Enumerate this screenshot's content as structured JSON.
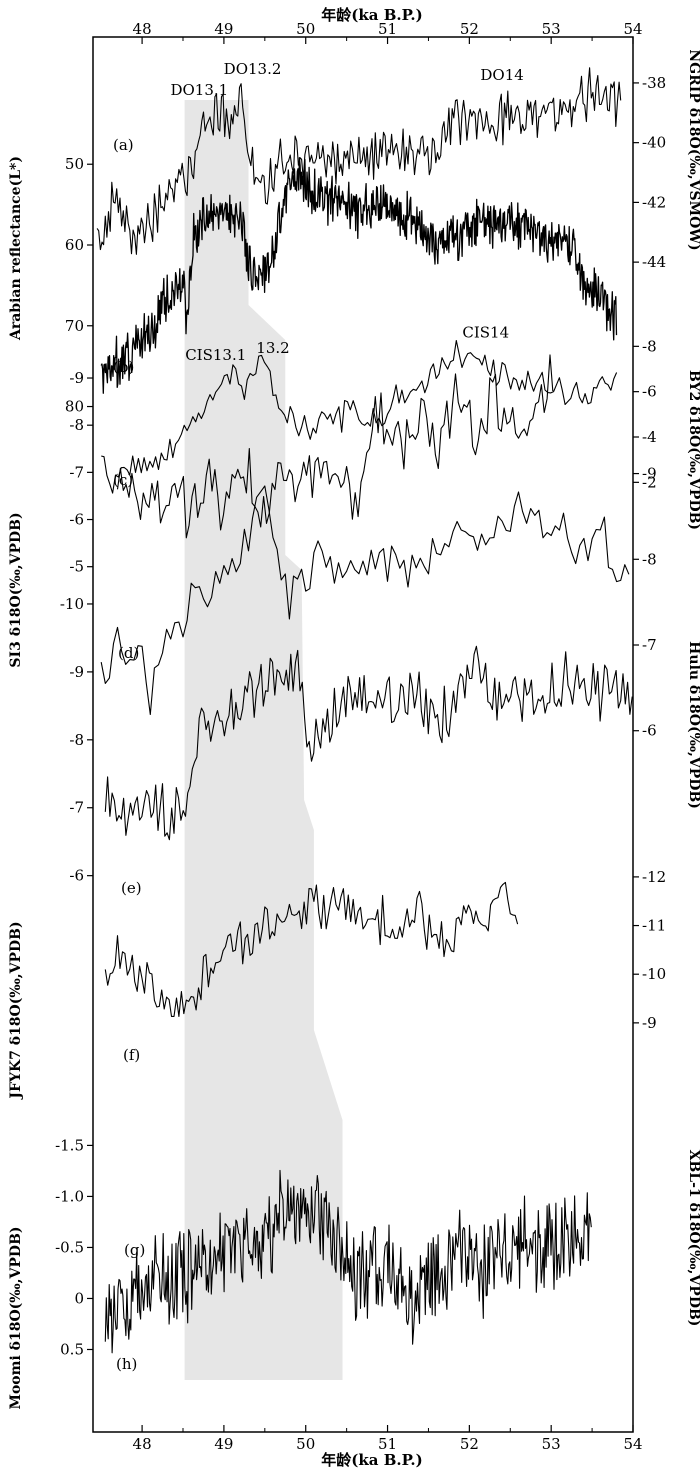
{
  "chart_data": {
    "type": "line",
    "title": "",
    "xlabel_top": "年龄(ka B.P.)",
    "xlabel_bottom": "年龄(ka B.P.)",
    "x_ticks": [
      "48",
      "49",
      "50",
      "51",
      "52",
      "53",
      "54"
    ],
    "xlim": [
      47.4,
      54.0
    ],
    "line_color": "#000000",
    "band_color": "#e6e6e6",
    "event_labels": [
      {
        "text": "DO13.1",
        "x": 48.7,
        "y": -38.4,
        "series": "a"
      },
      {
        "text": "DO13.2",
        "x": 49.35,
        "y": -37.7,
        "series": "a"
      },
      {
        "text": "DO14",
        "x": 52.4,
        "y": -37.9,
        "series": "a"
      },
      {
        "text": "CIS13.1",
        "x": 48.9,
        "y": -7.4,
        "series": "c"
      },
      {
        "text": "13.2",
        "x": 49.6,
        "y": -7.7,
        "series": "c"
      },
      {
        "text": "CIS14",
        "x": 52.2,
        "y": -8.4,
        "series": "c"
      }
    ],
    "series": [
      {
        "id": "a",
        "panel_label": "(a)",
        "name": "NGRIP δ18O",
        "axis_side": "right",
        "axis_title": "NGRIP δ18O(‰,VSMOW)",
        "ylim": [
          -45,
          -37.4
        ],
        "y_invert": false,
        "ticks": [
          -38,
          -40,
          -42,
          -44
        ],
        "tick_labels": [
          "-38",
          "-40",
          "-42",
          "-44"
        ],
        "x_start": 47.45,
        "x_end": 53.85,
        "anchors": [
          [
            47.45,
            -43.5
          ],
          [
            47.7,
            -41.8
          ],
          [
            47.9,
            -43.2
          ],
          [
            48.1,
            -42.6
          ],
          [
            48.35,
            -41.6
          ],
          [
            48.45,
            -41.3
          ],
          [
            48.6,
            -40.8
          ],
          [
            48.8,
            -39.5
          ],
          [
            48.95,
            -38.8
          ],
          [
            49.05,
            -39.6
          ],
          [
            49.2,
            -38.3
          ],
          [
            49.3,
            -40.2
          ],
          [
            49.42,
            -41.8
          ],
          [
            49.55,
            -41.4
          ],
          [
            49.75,
            -40.3
          ],
          [
            50.2,
            -40.5
          ],
          [
            50.8,
            -40.5
          ],
          [
            51.3,
            -40.3
          ],
          [
            51.6,
            -40.6
          ],
          [
            51.75,
            -39.4
          ],
          [
            52.3,
            -39.3
          ],
          [
            53.0,
            -38.9
          ],
          [
            53.5,
            -38.5
          ],
          [
            53.85,
            -38.8
          ]
        ],
        "noise": 0.75,
        "step": 0.02
      },
      {
        "id": "b",
        "panel_label": "(b)",
        "name": "Arabian reflectance",
        "axis_side": "left",
        "axis_title": "Arabian reflectance(L*)",
        "ylim": [
          86,
          47
        ],
        "y_invert": true,
        "ticks": [
          50,
          60,
          70,
          80
        ],
        "tick_labels": [
          "50",
          "60",
          "70",
          "80"
        ],
        "x_start": 47.5,
        "x_end": 53.8,
        "anchors": [
          [
            47.5,
            75
          ],
          [
            47.8,
            74
          ],
          [
            48.1,
            71
          ],
          [
            48.3,
            66
          ],
          [
            48.5,
            64
          ],
          [
            48.55,
            70
          ],
          [
            48.62,
            59
          ],
          [
            48.8,
            56
          ],
          [
            49.05,
            56
          ],
          [
            49.2,
            57
          ],
          [
            49.3,
            62
          ],
          [
            49.45,
            64
          ],
          [
            49.6,
            61
          ],
          [
            49.72,
            54
          ],
          [
            49.85,
            52
          ],
          [
            50.2,
            54
          ],
          [
            50.6,
            56
          ],
          [
            50.9,
            55
          ],
          [
            51.3,
            57
          ],
          [
            51.6,
            60
          ],
          [
            52.0,
            58
          ],
          [
            52.4,
            57
          ],
          [
            52.8,
            58
          ],
          [
            53.1,
            60
          ],
          [
            53.3,
            61
          ],
          [
            53.4,
            65
          ],
          [
            53.6,
            66
          ],
          [
            53.8,
            69
          ]
        ],
        "noise": 2.6,
        "step": 0.0085
      },
      {
        "id": "c",
        "panel_label": "(c)",
        "name": "BY2 δ18O",
        "axis_side": "right",
        "axis_title": "BY2 δ18O(‰,VPDB)",
        "ylim": [
          -1.0,
          -8.5
        ],
        "y_invert": true,
        "ticks": [
          -8,
          -6,
          -4,
          -2
        ],
        "tick_labels": [
          "-8",
          "-6",
          "-4",
          "-2"
        ],
        "x_start": 47.5,
        "x_end": 53.8,
        "anchors": [
          [
            47.5,
            -2.6
          ],
          [
            47.65,
            -1.9
          ],
          [
            47.8,
            -2.6
          ],
          [
            47.95,
            -3.0
          ],
          [
            48.1,
            -2.7
          ],
          [
            48.3,
            -3.3
          ],
          [
            48.5,
            -4.3
          ],
          [
            48.7,
            -5.2
          ],
          [
            48.9,
            -6.1
          ],
          [
            49.1,
            -6.8
          ],
          [
            49.3,
            -6.3
          ],
          [
            49.5,
            -7.3
          ],
          [
            49.65,
            -5.9
          ],
          [
            49.8,
            -5.0
          ],
          [
            50.0,
            -4.4
          ],
          [
            50.3,
            -4.8
          ],
          [
            50.6,
            -5.0
          ],
          [
            50.9,
            -4.7
          ],
          [
            51.1,
            -5.6
          ],
          [
            51.4,
            -6.1
          ],
          [
            51.65,
            -7.3
          ],
          [
            51.9,
            -7.6
          ],
          [
            52.2,
            -7.3
          ],
          [
            52.5,
            -6.4
          ],
          [
            52.8,
            -6.4
          ],
          [
            53.1,
            -5.9
          ],
          [
            53.4,
            -6.1
          ],
          [
            53.8,
            -6.2
          ]
        ],
        "noise": 0.55,
        "step": 0.035
      },
      {
        "id": "d",
        "panel_label": "(d)",
        "name": "SI3 δ18O",
        "axis_side": "left",
        "axis_title": "SI3 δ18O(‰,VPDB)",
        "ylim": [
          -4.4,
          -9.7
        ],
        "y_invert": true,
        "ticks": [
          -9,
          -8,
          -7,
          -6,
          -5
        ],
        "tick_labels": [
          "-9",
          "-8",
          "-7",
          "-6",
          "-5"
        ],
        "x_start": 47.7,
        "x_end": 53.05,
        "anchors": [
          [
            47.7,
            -6.8
          ],
          [
            47.9,
            -6.7
          ],
          [
            48.1,
            -6.2
          ],
          [
            48.35,
            -6.6
          ],
          [
            48.55,
            -6.3
          ],
          [
            48.8,
            -6.8
          ],
          [
            49.0,
            -6.0
          ],
          [
            49.15,
            -7.2
          ],
          [
            49.35,
            -6.8
          ],
          [
            49.5,
            -6.2
          ],
          [
            49.7,
            -7.1
          ],
          [
            49.9,
            -6.8
          ],
          [
            50.1,
            -7.1
          ],
          [
            50.3,
            -6.8
          ],
          [
            50.5,
            -7.0
          ],
          [
            50.65,
            -6.2
          ],
          [
            50.8,
            -8.0
          ],
          [
            51.0,
            -8.1
          ],
          [
            51.2,
            -7.7
          ],
          [
            51.4,
            -8.3
          ],
          [
            51.6,
            -7.3
          ],
          [
            51.8,
            -8.6
          ],
          [
            51.95,
            -8.7
          ],
          [
            52.1,
            -7.5
          ],
          [
            52.3,
            -8.6
          ],
          [
            52.5,
            -7.8
          ],
          [
            52.7,
            -7.3
          ],
          [
            52.9,
            -8.7
          ],
          [
            53.05,
            -9.2
          ]
        ],
        "noise": 0.55,
        "step": 0.035
      },
      {
        "id": "e",
        "panel_label": "(e)",
        "name": "Hulu δ18O",
        "axis_side": "right",
        "axis_title": "Hulu δ18O(‰,VPDB)",
        "ylim": [
          -5.6,
          -9.45
        ],
        "y_invert": true,
        "ticks": [
          -9,
          -8,
          -7,
          -6
        ],
        "tick_labels": [
          "-9",
          "-8",
          "-7",
          "-6"
        ],
        "x_start": 47.5,
        "x_end": 53.95,
        "anchors": [
          [
            47.5,
            -6.6
          ],
          [
            47.7,
            -7.0
          ],
          [
            47.9,
            -6.8
          ],
          [
            48.0,
            -6.9
          ],
          [
            48.1,
            -6.4
          ],
          [
            48.2,
            -7.0
          ],
          [
            48.4,
            -7.2
          ],
          [
            48.6,
            -7.4
          ],
          [
            48.8,
            -7.6
          ],
          [
            49.0,
            -7.7
          ],
          [
            49.2,
            -8.1
          ],
          [
            49.35,
            -8.5
          ],
          [
            49.5,
            -9.0
          ],
          [
            49.62,
            -8.2
          ],
          [
            49.75,
            -7.5
          ],
          [
            49.9,
            -7.7
          ],
          [
            50.1,
            -7.9
          ],
          [
            50.5,
            -7.9
          ],
          [
            50.8,
            -8.0
          ],
          [
            51.1,
            -7.9
          ],
          [
            51.5,
            -8.1
          ],
          [
            52.0,
            -8.3
          ],
          [
            52.3,
            -8.2
          ],
          [
            52.6,
            -8.6
          ],
          [
            53.0,
            -8.4
          ],
          [
            53.3,
            -8.1
          ],
          [
            53.6,
            -8.3
          ],
          [
            53.95,
            -7.6
          ]
        ],
        "noise": 0.25,
        "step": 0.05
      },
      {
        "id": "f",
        "panel_label": "(f)",
        "name": "JFYK7 δ18O",
        "axis_side": "left",
        "axis_title": "JFYK7 δ18O(‰,VPDB)",
        "ylim": [
          -5.2,
          -10.5
        ],
        "y_invert": true,
        "ticks": [
          -10,
          -9,
          -8,
          -7,
          -6
        ],
        "tick_labels": [
          "-10",
          "-9",
          "-8",
          "-7",
          "-6"
        ],
        "x_start": 47.55,
        "x_end": 54.0,
        "anchors": [
          [
            47.55,
            -7.2
          ],
          [
            47.8,
            -6.9
          ],
          [
            48.0,
            -7.0
          ],
          [
            48.2,
            -6.9
          ],
          [
            48.4,
            -6.8
          ],
          [
            48.52,
            -6.9
          ],
          [
            48.6,
            -7.6
          ],
          [
            48.7,
            -8.0
          ],
          [
            48.9,
            -8.2
          ],
          [
            49.1,
            -8.5
          ],
          [
            49.3,
            -8.6
          ],
          [
            49.5,
            -8.8
          ],
          [
            49.7,
            -8.9
          ],
          [
            49.9,
            -9.0
          ],
          [
            50.0,
            -8.0
          ],
          [
            50.2,
            -8.1
          ],
          [
            50.5,
            -8.5
          ],
          [
            50.8,
            -8.8
          ],
          [
            51.1,
            -8.6
          ],
          [
            51.4,
            -8.6
          ],
          [
            51.7,
            -8.3
          ],
          [
            51.9,
            -8.7
          ],
          [
            52.1,
            -9.2
          ],
          [
            52.3,
            -8.7
          ],
          [
            52.6,
            -8.7
          ],
          [
            52.9,
            -8.5
          ],
          [
            53.2,
            -9.0
          ],
          [
            53.5,
            -8.7
          ],
          [
            53.8,
            -8.9
          ],
          [
            54.0,
            -8.4
          ]
        ],
        "noise": 0.38,
        "step": 0.028
      },
      {
        "id": "g",
        "panel_label": "(g)",
        "name": "XBL-1 δ18O",
        "axis_side": "right",
        "axis_title": "XBL-1 δ18O(‰,VPDB)",
        "ylim": [
          -9.1,
          -12.45
        ],
        "y_invert": true,
        "ticks": [
          -12,
          -11,
          -10,
          -9
        ],
        "tick_labels": [
          "-12",
          "-11",
          "-10",
          "-9"
        ],
        "x_start": 47.55,
        "x_end": 52.6,
        "anchors": [
          [
            47.55,
            -10.0
          ],
          [
            47.65,
            -10.2
          ],
          [
            47.75,
            -10.3
          ],
          [
            47.9,
            -10.0
          ],
          [
            48.1,
            -9.7
          ],
          [
            48.3,
            -9.4
          ],
          [
            48.45,
            -9.35
          ],
          [
            48.55,
            -9.4
          ],
          [
            48.65,
            -9.6
          ],
          [
            48.8,
            -10.2
          ],
          [
            49.0,
            -10.6
          ],
          [
            49.2,
            -10.6
          ],
          [
            49.4,
            -10.8
          ],
          [
            49.6,
            -11.2
          ],
          [
            49.8,
            -11.3
          ],
          [
            50.0,
            -11.5
          ],
          [
            50.2,
            -11.3
          ],
          [
            50.4,
            -11.4
          ],
          [
            50.6,
            -11.2
          ],
          [
            50.8,
            -11.1
          ],
          [
            51.0,
            -11.0
          ],
          [
            51.2,
            -10.9
          ],
          [
            51.4,
            -11.3
          ],
          [
            51.6,
            -10.6
          ],
          [
            51.8,
            -10.9
          ],
          [
            52.0,
            -11.1
          ],
          [
            52.2,
            -11.2
          ],
          [
            52.4,
            -11.6
          ],
          [
            52.6,
            -11.3
          ]
        ],
        "noise": 0.45,
        "step": 0.03
      },
      {
        "id": "h",
        "panel_label": "(h)",
        "name": "Moomi δ18O",
        "axis_side": "left",
        "axis_title": "Moomi δ18O(‰,VPDB)",
        "ylim": [
          0.75,
          -1.7
        ],
        "y_invert": true,
        "ticks": [
          -1.5,
          -1.0,
          -0.5,
          0,
          0.5
        ],
        "tick_labels": [
          "-1.5",
          "-1.0",
          "-0.5",
          "0",
          "0.5"
        ],
        "x_start": 47.55,
        "x_end": 53.5,
        "anchors": [
          [
            47.55,
            0.2
          ],
          [
            47.8,
            0.05
          ],
          [
            48.0,
            -0.05
          ],
          [
            48.3,
            -0.2
          ],
          [
            48.6,
            -0.3
          ],
          [
            48.9,
            -0.4
          ],
          [
            49.2,
            -0.5
          ],
          [
            49.5,
            -0.65
          ],
          [
            49.8,
            -0.8
          ],
          [
            50.0,
            -0.9
          ],
          [
            50.2,
            -0.8
          ],
          [
            50.4,
            -0.5
          ],
          [
            50.6,
            -0.2
          ],
          [
            50.8,
            -0.3
          ],
          [
            51.0,
            -0.2
          ],
          [
            51.2,
            0.0
          ],
          [
            51.5,
            -0.2
          ],
          [
            51.8,
            -0.4
          ],
          [
            52.1,
            -0.3
          ],
          [
            52.4,
            -0.5
          ],
          [
            52.7,
            -0.5
          ],
          [
            53.0,
            -0.45
          ],
          [
            53.3,
            -0.6
          ],
          [
            53.5,
            -0.7
          ]
        ],
        "noise": 0.42,
        "step": 0.012
      }
    ]
  }
}
